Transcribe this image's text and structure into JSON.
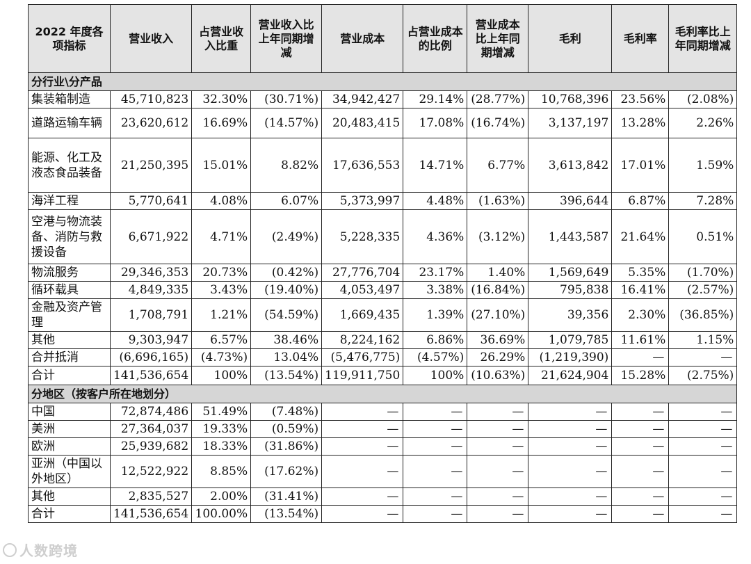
{
  "headers": [
    "2022 年度各项指标",
    "营业收入",
    "占营业收入比重",
    "营业收入比上年同期增减",
    "营业成本",
    "占营业成本的比例",
    "营业成本比上年同期增减",
    "毛利",
    "毛利率",
    "毛利率比上年同期增减"
  ],
  "industry_section": "分行业\\分产品",
  "industry_rows": [
    [
      "集装箱制造",
      "45,710,823",
      "32.30%",
      "(30.71%)",
      "34,942,427",
      "29.14%",
      "(28.77%)",
      "10,768,396",
      "23.56%",
      "(2.08%)"
    ],
    [
      "道路运输车辆",
      "23,620,612",
      "16.69%",
      "(14.57%)",
      "20,483,415",
      "17.08%",
      "(16.74%)",
      "3,137,197",
      "13.28%",
      "2.26%"
    ],
    [
      "能源、化工及液态食品装备",
      "21,250,395",
      "15.01%",
      "8.82%",
      "17,636,553",
      "14.71%",
      "6.77%",
      "3,613,842",
      "17.01%",
      "1.59%"
    ],
    [
      "海洋工程",
      "5,770,641",
      "4.08%",
      "6.07%",
      "5,373,997",
      "4.48%",
      "(1.63%)",
      "396,644",
      "6.87%",
      "7.28%"
    ],
    [
      "空港与物流装备、消防与救援设备",
      "6,671,922",
      "4.71%",
      "(2.49%)",
      "5,228,335",
      "4.36%",
      "(3.12%)",
      "1,443,587",
      "21.64%",
      "0.51%"
    ],
    [
      "物流服务",
      "29,346,353",
      "20.73%",
      "(0.42%)",
      "27,776,704",
      "23.17%",
      "1.40%",
      "1,569,649",
      "5.35%",
      "(1.70%)"
    ],
    [
      "循环载具",
      "4,849,335",
      "3.43%",
      "(19.40%)",
      "4,053,497",
      "3.38%",
      "(16.84%)",
      "795,838",
      "16.41%",
      "(2.57%)"
    ],
    [
      "金融及资产管理",
      "1,708,791",
      "1.21%",
      "(54.59%)",
      "1,669,435",
      "1.39%",
      "(27.10%)",
      "39,356",
      "2.30%",
      "(36.85%)"
    ],
    [
      "其他",
      "9,303,947",
      "6.57%",
      "38.46%",
      "8,224,162",
      "6.86%",
      "36.69%",
      "1,079,785",
      "11.61%",
      "1.15%"
    ],
    [
      "合并抵消",
      "(6,696,165)",
      "(4.73%)",
      "13.04%",
      "(5,476,775)",
      "(4.57%)",
      "26.29%",
      "(1,219,390)",
      "—",
      "—"
    ],
    [
      "合计",
      "141,536,654",
      "100%",
      "(13.54%)",
      "119,911,750",
      "100%",
      "(10.63%)",
      "21,624,904",
      "15.28%",
      "(2.75%)"
    ]
  ],
  "region_section": "分地区（按客户所在地划分）",
  "region_rows": [
    [
      "中国",
      "72,874,486",
      "51.49%",
      "(7.48%)",
      "—",
      "—",
      "—",
      "—",
      "—",
      "—"
    ],
    [
      "美洲",
      "27,364,037",
      "19.33%",
      "(0.59%)",
      "—",
      "—",
      "—",
      "—",
      "—",
      "—"
    ],
    [
      "欧洲",
      "25,939,682",
      "18.33%",
      "(31.86%)",
      "—",
      "—",
      "—",
      "—",
      "—",
      "—"
    ],
    [
      "亚洲（中国以外地区）",
      "12,522,922",
      "8.85%",
      "(17.62%)",
      "—",
      "—",
      "—",
      "—",
      "—",
      "—"
    ],
    [
      "其他",
      "2,835,527",
      "2.00%",
      "(31.41%)",
      "—",
      "—",
      "—",
      "—",
      "—",
      "—"
    ],
    [
      "合计",
      "141,536,654",
      "100.00%",
      "(13.54%)",
      "—",
      "—",
      "—",
      "—",
      "—",
      "—"
    ]
  ],
  "watermark": "人数跨境"
}
